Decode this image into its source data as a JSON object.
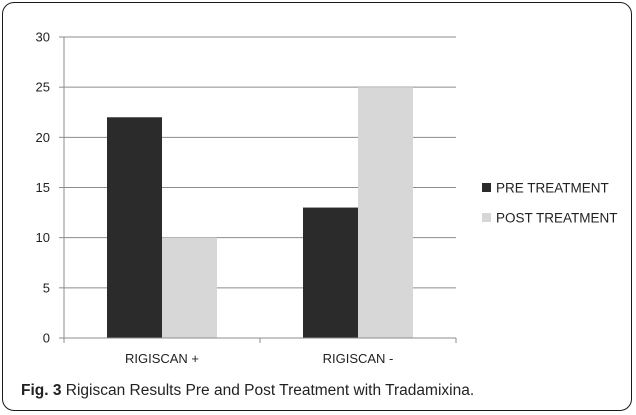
{
  "chart_data": {
    "type": "bar",
    "categories": [
      "RIGISCAN +",
      "RIGISCAN -"
    ],
    "series": [
      {
        "name": "PRE TREATMENT",
        "values": [
          22,
          13
        ],
        "color": "#2b2b2b"
      },
      {
        "name": "POST TREATMENT",
        "values": [
          10,
          25
        ],
        "color": "#d7d7d7"
      }
    ],
    "ylim": [
      0,
      30
    ],
    "yticks": [
      0,
      5,
      10,
      15,
      20,
      25,
      30
    ],
    "grid": true,
    "legend_position": "right"
  },
  "caption": {
    "label": "Fig. 3",
    "text": "Rigiscan Results Pre and Post Treatment with Tradamixina."
  }
}
